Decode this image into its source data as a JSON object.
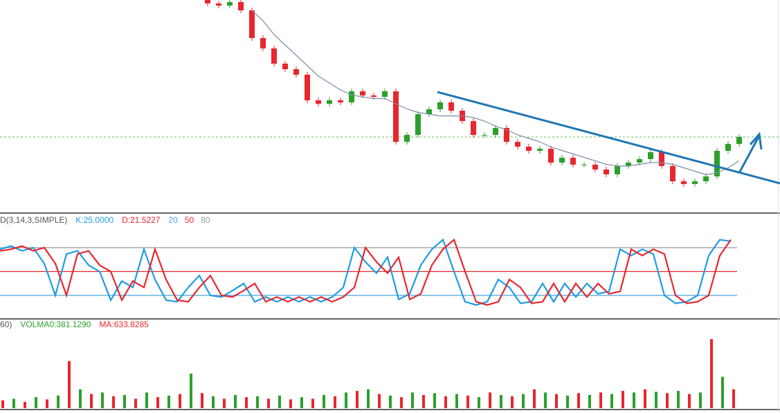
{
  "chart_data": [
    {
      "type": "candlestick",
      "open": [
        100,
        99,
        98.4,
        99.4,
        97,
        89,
        86,
        81.6,
        80,
        78.4,
        71,
        70,
        71,
        70.4,
        73.6,
        72.4,
        72,
        73.6,
        59,
        61,
        67,
        68.4,
        70.4,
        68,
        65,
        61,
        61,
        63,
        59,
        57.6,
        56.4,
        57,
        53,
        54.4,
        52.4,
        52.4,
        51,
        49.6,
        52,
        53,
        54,
        56,
        52,
        47.6,
        46.8,
        47.6,
        49,
        56.4,
        58.4
      ],
      "high": [
        100.8,
        99.8,
        100.2,
        100.2,
        97.8,
        89.8,
        86.8,
        82.4,
        80.8,
        79.2,
        71.8,
        71.8,
        71.8,
        74.4,
        74.4,
        73.2,
        74.4,
        74.4,
        61.8,
        67.8,
        69.2,
        71.2,
        71.2,
        68.8,
        65.8,
        61.8,
        63.8,
        63.8,
        59.8,
        58.4,
        57.8,
        57.8,
        55.2,
        55.2,
        53.2,
        53.2,
        51.8,
        52.8,
        53.8,
        54.8,
        56.8,
        56.8,
        52.8,
        48.4,
        48.4,
        49.8,
        57.2,
        59.2,
        61.2
      ],
      "low": [
        98.2,
        97.6,
        97.6,
        96.2,
        88.2,
        85.2,
        80.8,
        79.2,
        77.6,
        70.2,
        69.2,
        69.2,
        69.6,
        69.6,
        71.6,
        71.2,
        71.2,
        58.2,
        58.2,
        60.2,
        66.2,
        67.6,
        67.2,
        64.2,
        60.2,
        60.2,
        60.2,
        58.2,
        56.8,
        55.6,
        55.6,
        52.2,
        52.2,
        51.6,
        51.6,
        50.2,
        48.8,
        48.8,
        51.2,
        52.2,
        53.2,
        51.2,
        46.8,
        46,
        46,
        46.8,
        48.2,
        55.6,
        57.6
      ],
      "close": [
        99,
        98.4,
        99.4,
        97,
        89,
        86,
        81.6,
        80,
        78.4,
        71,
        70,
        71,
        70.4,
        73.6,
        72.4,
        72,
        73.6,
        59,
        61,
        67,
        68.4,
        70.4,
        68,
        65,
        61,
        61,
        63,
        59,
        57.6,
        56.4,
        57,
        53,
        54.4,
        52.4,
        52.4,
        51,
        49.6,
        52,
        53,
        54,
        56,
        52,
        47.6,
        46.8,
        47.6,
        49,
        56.4,
        58.4,
        60.4
      ],
      "ma": [
        null,
        null,
        null,
        null,
        97,
        94,
        90,
        87,
        84,
        81,
        78,
        76,
        74,
        72.5,
        72,
        71.5,
        71.5,
        70,
        68.5,
        67.5,
        67,
        66.5,
        66.5,
        66.5,
        66,
        65,
        63.5,
        62.5,
        61,
        60,
        59,
        57.5,
        56.5,
        55.5,
        54.5,
        53.5,
        52.5,
        52,
        52,
        52.5,
        53,
        53,
        52.5,
        51.5,
        50.5,
        49.5,
        50,
        51.5,
        53.5
      ],
      "up_color": "#2ca02c",
      "down_color": "#e8262d",
      "ma_color": "#7b8da6",
      "ylim": [
        40,
        100
      ]
    },
    {
      "type": "line",
      "legend": [
        {
          "text": "D(3,14,3,SIMPLE)",
          "color": "#555555"
        },
        {
          "text": "K:25.0000",
          "color": "#1e9be6"
        },
        {
          "text": "D:21.5227",
          "color": "#e8262d"
        }
      ],
      "levels": [
        20,
        50,
        80
      ],
      "level_colors": [
        "#4aa3df",
        "#e8262d",
        "#999999"
      ],
      "series": [
        {
          "name": "K",
          "color": "#1e9be6",
          "values": [
            78,
            82,
            76,
            80,
            60,
            20,
            72,
            76,
            58,
            50,
            14,
            38,
            30,
            78,
            40,
            14,
            12,
            30,
            45,
            20,
            18,
            26,
            35,
            12,
            18,
            12,
            18,
            12,
            18,
            12,
            18,
            30,
            80,
            62,
            48,
            68,
            15,
            22,
            58,
            78,
            90,
            50,
            12,
            8,
            12,
            40,
            30,
            10,
            12,
            35,
            12,
            35,
            18,
            35,
            22,
            25,
            78,
            70,
            78,
            72,
            20,
            10,
            12,
            20,
            70,
            90,
            88
          ]
        },
        {
          "name": "D",
          "color": "#e8262d",
          "values": [
            76,
            78,
            82,
            76,
            80,
            60,
            20,
            72,
            76,
            58,
            50,
            14,
            38,
            30,
            78,
            40,
            14,
            12,
            30,
            45,
            20,
            18,
            26,
            35,
            12,
            18,
            12,
            18,
            12,
            18,
            12,
            18,
            30,
            80,
            62,
            48,
            68,
            15,
            22,
            58,
            78,
            90,
            50,
            12,
            8,
            12,
            40,
            30,
            10,
            12,
            35,
            12,
            35,
            18,
            35,
            22,
            25,
            78,
            70,
            78,
            72,
            20,
            10,
            12,
            20,
            70,
            90
          ]
        }
      ],
      "ylim": [
        0,
        100
      ]
    },
    {
      "type": "bar",
      "legend": [
        {
          "text": "60)",
          "color": "#555555"
        },
        {
          "text": "VOLMA0:381.1290",
          "color": "#2ca02c"
        },
        {
          "text": "MA:633.8285",
          "color": "#e8262d"
        }
      ],
      "values": [
        250,
        300,
        200,
        350,
        280,
        400,
        1500,
        600,
        450,
        500,
        380,
        420,
        300,
        500,
        350,
        400,
        450,
        1100,
        480,
        380,
        300,
        420,
        350,
        380,
        300,
        400,
        280,
        350,
        300,
        420,
        380,
        500,
        550,
        600,
        450,
        400,
        350,
        500,
        420,
        480,
        380,
        450,
        400,
        350,
        500,
        420,
        380,
        450,
        600,
        500,
        450,
        400,
        480,
        420,
        500,
        450,
        550,
        500,
        600,
        520,
        480,
        550,
        450,
        500,
        2200,
        1000,
        600
      ],
      "colors": [
        "#e8262d",
        "#2ca02c"
      ],
      "ylim": [
        0,
        2800
      ]
    }
  ]
}
